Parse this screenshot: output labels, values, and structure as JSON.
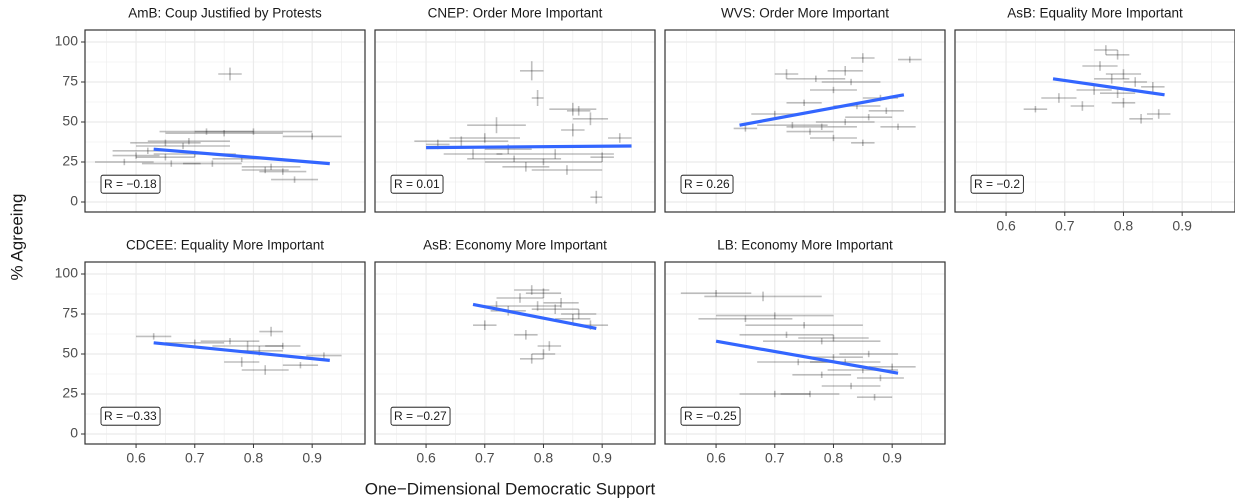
{
  "x_label": "One−Dimensional Democratic Support",
  "y_label": "% Agreeing",
  "chart_data": [
    {
      "type": "errorbar_scatter",
      "title": "AmB: Coup Justified by Protests",
      "annotation": "R = −0.18",
      "x": [
        0.76,
        0.65,
        0.68,
        0.72,
        0.75,
        0.8,
        0.62,
        0.65,
        0.7,
        0.58,
        0.66,
        0.73,
        0.82,
        0.85,
        0.87,
        0.9,
        0.78,
        0.6,
        0.83,
        0.69
      ],
      "values": [
        80,
        37,
        35,
        44,
        43,
        44,
        32,
        28,
        30,
        25,
        24,
        24,
        20,
        19,
        14,
        41,
        27,
        29,
        22,
        38
      ],
      "x_error": [
        0.02,
        0.06,
        0.08,
        0.08,
        0.1,
        0.1,
        0.06,
        0.05,
        0.07,
        0.05,
        0.05,
        0.05,
        0.04,
        0.04,
        0.04,
        0.05,
        0.05,
        0.04,
        0.05,
        0.07
      ],
      "y_error": [
        4,
        2,
        2,
        2,
        2,
        2,
        2,
        2,
        2,
        2,
        2,
        2,
        2,
        2,
        2,
        2,
        2,
        2,
        2,
        2
      ],
      "fit": {
        "x": [
          0.63,
          0.93
        ],
        "y": [
          33,
          24
        ]
      },
      "fit_color": "#3366ff",
      "point_color": "#000000",
      "xlim": [
        0.513,
        0.99
      ],
      "ylim": [
        -6.25,
        107.5
      ],
      "xticks": [
        0.6,
        0.7,
        0.8,
        0.9
      ],
      "yticks": [
        0,
        25,
        50,
        75,
        100
      ],
      "grid": true
    },
    {
      "type": "errorbar_scatter",
      "title": "CNEP: Order More Important",
      "annotation": "R = 0.01",
      "x": [
        0.78,
        0.79,
        0.72,
        0.85,
        0.86,
        0.9,
        0.89,
        0.66,
        0.7,
        0.62,
        0.75,
        0.8,
        0.82,
        0.85,
        0.84,
        0.93,
        0.88,
        0.77,
        0.68,
        0.74
      ],
      "values": [
        82,
        65,
        48,
        58,
        57,
        28,
        3,
        38,
        40,
        36,
        27,
        25,
        30,
        45,
        20,
        40,
        52,
        22,
        30,
        33
      ],
      "x_error": [
        0.02,
        0.01,
        0.05,
        0.04,
        0.02,
        0.02,
        0.01,
        0.08,
        0.06,
        0.02,
        0.08,
        0.1,
        0.1,
        0.02,
        0.06,
        0.02,
        0.03,
        0.04,
        0.05,
        0.04
      ],
      "y_error": [
        6,
        5,
        5,
        4,
        3,
        3,
        4,
        3,
        3,
        3,
        2,
        2,
        3,
        4,
        3,
        3,
        4,
        3,
        3,
        3
      ],
      "fit": {
        "x": [
          0.6,
          0.95
        ],
        "y": [
          34,
          35
        ]
      },
      "fit_color": "#3366ff",
      "point_color": "#000000",
      "xlim": [
        0.513,
        0.99
      ],
      "ylim": [
        -6.25,
        107.5
      ],
      "xticks": [
        0.6,
        0.7,
        0.8,
        0.9
      ],
      "yticks": [
        0,
        25,
        50,
        75,
        100
      ],
      "grid": true
    },
    {
      "type": "errorbar_scatter",
      "title": "WVS: Order More Important",
      "annotation": "R = 0.26",
      "x": [
        0.85,
        0.93,
        0.82,
        0.77,
        0.83,
        0.72,
        0.8,
        0.88,
        0.75,
        0.7,
        0.73,
        0.78,
        0.82,
        0.86,
        0.91,
        0.65,
        0.8,
        0.85,
        0.76,
        0.89,
        0.84
      ],
      "values": [
        90,
        89,
        82,
        77,
        75,
        80,
        70,
        65,
        62,
        55,
        48,
        47,
        50,
        53,
        47,
        46,
        40,
        37,
        44,
        57,
        60
      ],
      "x_error": [
        0.02,
        0.02,
        0.03,
        0.05,
        0.05,
        0.02,
        0.04,
        0.03,
        0.03,
        0.04,
        0.06,
        0.06,
        0.05,
        0.04,
        0.03,
        0.02,
        0.04,
        0.02,
        0.04,
        0.03,
        0.04
      ],
      "y_error": [
        3,
        2,
        3,
        2,
        2,
        3,
        2,
        2,
        2,
        2,
        2,
        2,
        2,
        2,
        2,
        2,
        2,
        2,
        2,
        2,
        2
      ],
      "fit": {
        "x": [
          0.64,
          0.92
        ],
        "y": [
          48,
          67
        ]
      },
      "fit_color": "#3366ff",
      "point_color": "#000000",
      "xlim": [
        0.513,
        0.99
      ],
      "ylim": [
        -6.25,
        107.5
      ],
      "xticks": [
        0.6,
        0.7,
        0.8,
        0.9
      ],
      "yticks": [
        0,
        25,
        50,
        75,
        100
      ],
      "grid": true
    },
    {
      "type": "errorbar_scatter",
      "title": "AsB: Equality More Important",
      "annotation": "R = −0.2",
      "x": [
        0.77,
        0.79,
        0.76,
        0.8,
        0.78,
        0.82,
        0.75,
        0.85,
        0.69,
        0.65,
        0.8,
        0.83,
        0.86,
        0.73,
        0.79
      ],
      "values": [
        95,
        92,
        85,
        80,
        77,
        75,
        70,
        72,
        65,
        58,
        62,
        52,
        55,
        60,
        68
      ],
      "x_error": [
        0.02,
        0.02,
        0.03,
        0.03,
        0.03,
        0.02,
        0.03,
        0.02,
        0.03,
        0.02,
        0.02,
        0.02,
        0.02,
        0.02,
        0.03
      ],
      "y_error": [
        3,
        3,
        3,
        3,
        3,
        3,
        3,
        3,
        3,
        2,
        3,
        3,
        3,
        3,
        3
      ],
      "fit": {
        "x": [
          0.68,
          0.87
        ],
        "y": [
          77,
          67
        ]
      },
      "fit_color": "#3366ff",
      "point_color": "#000000",
      "xlim": [
        0.513,
        0.99
      ],
      "ylim": [
        -6.25,
        107.5
      ],
      "xticks": [
        0.6,
        0.7,
        0.8,
        0.9
      ],
      "yticks": [
        0,
        25,
        50,
        75,
        100
      ],
      "grid": true
    },
    {
      "type": "errorbar_scatter",
      "title": "CDCEE: Equality More Important",
      "annotation": "R = −0.33",
      "x": [
        0.63,
        0.7,
        0.79,
        0.83,
        0.81,
        0.78,
        0.82,
        0.88,
        0.92,
        0.85,
        0.76
      ],
      "values": [
        61,
        57,
        55,
        64,
        52,
        45,
        40,
        43,
        49,
        55,
        58
      ],
      "x_error": [
        0.03,
        0.05,
        0.06,
        0.02,
        0.04,
        0.03,
        0.04,
        0.03,
        0.03,
        0.03,
        0.05
      ],
      "y_error": [
        2,
        2,
        3,
        3,
        3,
        3,
        3,
        2,
        2,
        2,
        2
      ],
      "fit": {
        "x": [
          0.63,
          0.93
        ],
        "y": [
          57,
          46
        ]
      },
      "fit_color": "#3366ff",
      "point_color": "#000000",
      "xlim": [
        0.513,
        0.99
      ],
      "ylim": [
        -6.25,
        107.5
      ],
      "xticks": [
        0.6,
        0.7,
        0.8,
        0.9
      ],
      "yticks": [
        0,
        25,
        50,
        75,
        100
      ],
      "grid": true
    },
    {
      "type": "errorbar_scatter",
      "title": "AsB: Economy More Important",
      "annotation": "R = −0.27",
      "x": [
        0.78,
        0.8,
        0.76,
        0.79,
        0.82,
        0.74,
        0.7,
        0.85,
        0.88,
        0.77,
        0.81,
        0.78,
        0.8,
        0.72,
        0.83,
        0.86
      ],
      "values": [
        90,
        88,
        85,
        80,
        78,
        77,
        68,
        72,
        68,
        62,
        55,
        47,
        50,
        80,
        82,
        75
      ],
      "x_error": [
        0.03,
        0.03,
        0.04,
        0.04,
        0.04,
        0.03,
        0.02,
        0.03,
        0.03,
        0.02,
        0.02,
        0.02,
        0.02,
        0.03,
        0.03,
        0.03
      ],
      "y_error": [
        3,
        3,
        3,
        3,
        3,
        3,
        3,
        3,
        3,
        3,
        3,
        3,
        3,
        3,
        3,
        3
      ],
      "fit": {
        "x": [
          0.68,
          0.89
        ],
        "y": [
          81,
          66
        ]
      },
      "fit_color": "#3366ff",
      "point_color": "#000000",
      "xlim": [
        0.513,
        0.99
      ],
      "ylim": [
        -6.25,
        107.5
      ],
      "xticks": [
        0.6,
        0.7,
        0.8,
        0.9
      ],
      "yticks": [
        0,
        25,
        50,
        75,
        100
      ],
      "grid": true
    },
    {
      "type": "errorbar_scatter",
      "title": "LB: Economy More Important",
      "annotation": "R = −0.25",
      "x": [
        0.6,
        0.68,
        0.65,
        0.7,
        0.75,
        0.78,
        0.8,
        0.72,
        0.82,
        0.85,
        0.78,
        0.88,
        0.83,
        0.7,
        0.76,
        0.87,
        0.9,
        0.8,
        0.74,
        0.86
      ],
      "values": [
        88,
        86,
        72,
        74,
        68,
        58,
        60,
        62,
        45,
        40,
        37,
        35,
        30,
        25,
        25,
        23,
        42,
        48,
        45,
        50
      ],
      "x_error": [
        0.06,
        0.1,
        0.08,
        0.1,
        0.1,
        0.1,
        0.06,
        0.08,
        0.06,
        0.06,
        0.05,
        0.04,
        0.05,
        0.06,
        0.05,
        0.03,
        0.04,
        0.05,
        0.07,
        0.05
      ],
      "y_error": [
        2,
        3,
        2,
        2,
        2,
        2,
        2,
        2,
        2,
        2,
        2,
        2,
        2,
        2,
        2,
        2,
        2,
        2,
        2,
        2
      ],
      "fit": {
        "x": [
          0.6,
          0.91
        ],
        "y": [
          58,
          38
        ]
      },
      "fit_color": "#3366ff",
      "point_color": "#000000",
      "xlim": [
        0.513,
        0.99
      ],
      "ylim": [
        -6.25,
        107.5
      ],
      "xticks": [
        0.6,
        0.7,
        0.8,
        0.9
      ],
      "yticks": [
        0,
        25,
        50,
        75,
        100
      ],
      "grid": true
    }
  ]
}
